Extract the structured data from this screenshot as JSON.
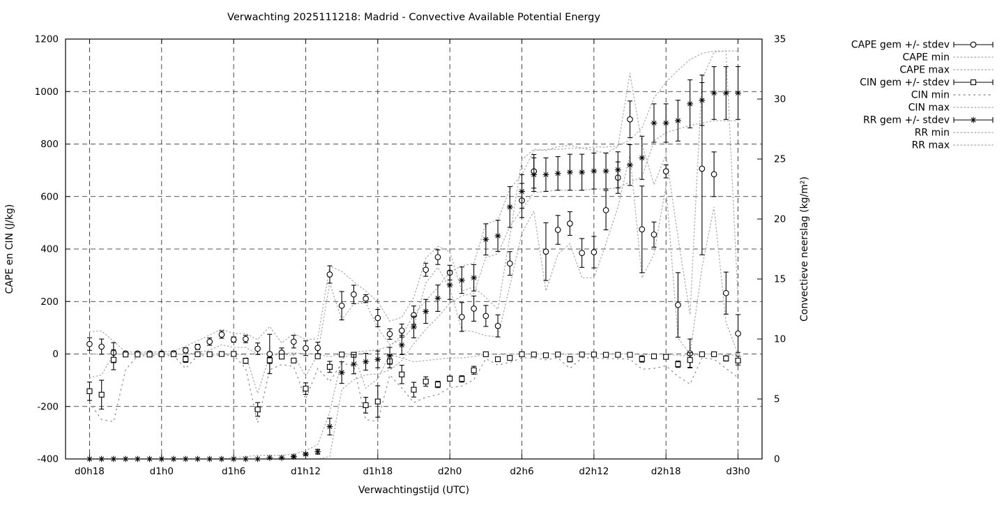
{
  "page": {
    "background": "#ffffff"
  },
  "chart_data": {
    "type": "errorbar-line",
    "title": "Verwachting 2025111218: Madrid - Convective Available Potential Energy",
    "xlabel": "Verwachtingstijd (UTC)",
    "ylabel_left": "CAPE en CIN (J/kg)",
    "ylabel_right": "Convectieve neerslag (kg/m²)",
    "grid": true,
    "legend_position": "outside-top-right",
    "legend": [
      "CAPE gem +/- stdev",
      "CAPE min",
      "CAPE max",
      "CIN gem +/- stdev",
      "CIN min",
      "CIN max",
      "RR gem +/- stdev",
      "RR min",
      "RR max"
    ],
    "colors": {
      "series": "#000000",
      "minmax_dotted": "#b0b0b0",
      "cin_min_dotted": "#8f8f8f",
      "grid": "#1a1a1a",
      "background": "#ffffff"
    },
    "x_domain_hours": [
      -2,
      56
    ],
    "x_ticks": [
      {
        "hour": 0,
        "label": "d0h18"
      },
      {
        "hour": 6,
        "label": "d1h0"
      },
      {
        "hour": 12,
        "label": "d1h6"
      },
      {
        "hour": 18,
        "label": "d1h12"
      },
      {
        "hour": 24,
        "label": "d1h18"
      },
      {
        "hour": 30,
        "label": "d2h0"
      },
      {
        "hour": 36,
        "label": "d2h6"
      },
      {
        "hour": 42,
        "label": "d2h12"
      },
      {
        "hour": 48,
        "label": "d2h18"
      },
      {
        "hour": 54,
        "label": "d3h0"
      }
    ],
    "ylim_left": [
      -400,
      1200
    ],
    "yticks_left": [
      -400,
      -200,
      0,
      200,
      400,
      600,
      800,
      1000,
      1200
    ],
    "ylim_right": [
      0,
      35
    ],
    "yticks_right": [
      0,
      5,
      10,
      15,
      20,
      25,
      30,
      35
    ],
    "hours": [
      0,
      1,
      2,
      3,
      4,
      5,
      6,
      7,
      8,
      9,
      10,
      11,
      12,
      13,
      14,
      15,
      16,
      17,
      18,
      19,
      20,
      21,
      22,
      23,
      24,
      25,
      26,
      27,
      28,
      29,
      30,
      31,
      32,
      33,
      34,
      35,
      36,
      37,
      38,
      39,
      40,
      41,
      42,
      43,
      44,
      45,
      46,
      47,
      48,
      49,
      50,
      51,
      52,
      53,
      54
    ],
    "series": {
      "cape": {
        "name": "CAPE",
        "axis": "left",
        "marker": "circle",
        "mean": [
          38,
          28,
          5,
          2,
          2,
          2,
          2,
          3,
          14,
          27,
          47,
          74,
          55,
          57,
          20,
          0,
          5,
          47,
          22,
          23,
          303,
          184,
          227,
          211,
          137,
          76,
          89,
          148,
          321,
          369,
          310,
          141,
          173,
          145,
          107,
          345,
          585,
          696,
          390,
          473,
          497,
          385,
          388,
          548,
          672,
          894,
          475,
          455,
          696,
          187,
          2,
          706,
          685,
          232,
          78
        ],
        "stdev": [
          24,
          29,
          38,
          3,
          3,
          3,
          3,
          4,
          10,
          10,
          14,
          14,
          10,
          14,
          22,
          75,
          18,
          24,
          28,
          22,
          33,
          54,
          35,
          15,
          33,
          20,
          25,
          35,
          25,
          28,
          28,
          55,
          48,
          40,
          42,
          45,
          65,
          64,
          110,
          55,
          45,
          55,
          60,
          75,
          60,
          70,
          165,
          48,
          25,
          123,
          55,
          328,
          85,
          80,
          72
        ],
        "min": [
          0,
          0,
          0,
          0,
          0,
          0,
          0,
          0,
          0,
          5,
          15,
          35,
          25,
          25,
          0,
          0,
          0,
          5,
          0,
          0,
          270,
          130,
          190,
          195,
          100,
          36,
          55,
          105,
          270,
          330,
          250,
          90,
          85,
          70,
          65,
          260,
          460,
          545,
          240,
          380,
          420,
          290,
          290,
          420,
          560,
          760,
          290,
          380,
          640,
          60,
          0,
          330,
          560,
          120,
          0
        ],
        "max": [
          85,
          88,
          48,
          8,
          7,
          7,
          8,
          10,
          30,
          50,
          72,
          95,
          78,
          78,
          55,
          105,
          42,
          78,
          55,
          58,
          335,
          315,
          275,
          240,
          200,
          125,
          140,
          215,
          365,
          410,
          390,
          240,
          255,
          215,
          170,
          450,
          740,
          780,
          775,
          790,
          795,
          785,
          775,
          765,
          790,
          1070,
          800,
          645,
          760,
          445,
          150,
          1045,
          1150,
          1155,
          200
        ]
      },
      "cin": {
        "name": "CIN",
        "axis": "left",
        "marker": "square",
        "mean": [
          -142,
          -155,
          -22,
          -2,
          -2,
          -2,
          -1,
          -1,
          -20,
          -1,
          -1,
          0,
          0,
          -26,
          -211,
          -24,
          -10,
          -25,
          -132,
          -9,
          -49,
          -2,
          -3,
          -195,
          -181,
          -28,
          -78,
          -136,
          -105,
          -116,
          -94,
          -95,
          -62,
          -1,
          -20,
          -15,
          -1,
          -2,
          -5,
          -2,
          -20,
          -2,
          -2,
          -3,
          -3,
          -3,
          -19,
          -9,
          -11,
          -39,
          -23,
          -1,
          -1,
          -17,
          -25
        ],
        "stdev": [
          35,
          55,
          38,
          2,
          2,
          2,
          2,
          2,
          12,
          2,
          2,
          2,
          2,
          10,
          26,
          12,
          8,
          8,
          22,
          7,
          21,
          5,
          5,
          30,
          60,
          25,
          35,
          28,
          18,
          12,
          10,
          12,
          15,
          4,
          7,
          5,
          3,
          3,
          4,
          3,
          10,
          3,
          3,
          3,
          3,
          3,
          12,
          9,
          7,
          12,
          28,
          3,
          4,
          10,
          17
        ],
        "min": [
          -185,
          -250,
          -258,
          -60,
          -6,
          -6,
          -5,
          -6,
          -55,
          -6,
          -5,
          -4,
          -5,
          -55,
          -262,
          -60,
          -40,
          -48,
          -172,
          -55,
          -105,
          -35,
          -45,
          -250,
          -258,
          -80,
          -130,
          -185,
          -165,
          -155,
          -128,
          -122,
          -98,
          -18,
          -42,
          -32,
          -15,
          -15,
          -22,
          -15,
          -55,
          -15,
          -15,
          -18,
          -18,
          -20,
          -58,
          -55,
          -45,
          -85,
          -115,
          -15,
          -20,
          -55,
          -90
        ],
        "max": [
          -90,
          -80,
          -1,
          0,
          0,
          0,
          0,
          0,
          -2,
          0,
          0,
          0,
          0,
          -4,
          -150,
          -5,
          -1,
          -5,
          -85,
          -1,
          -10,
          0,
          0,
          -130,
          -95,
          -3,
          -15,
          -30,
          -25,
          -20,
          -15,
          -15,
          -10,
          0,
          -2,
          -1,
          0,
          0,
          0,
          0,
          -2,
          0,
          0,
          0,
          0,
          0,
          -3,
          -1,
          -1,
          -5,
          -8,
          0,
          0,
          -3,
          -5
        ]
      },
      "rr": {
        "name": "RR",
        "axis": "right",
        "marker": "asterisk",
        "mean": [
          0,
          0,
          0,
          0,
          0,
          0,
          0,
          0,
          0,
          0,
          0,
          0,
          0,
          0,
          0,
          0.1,
          0.1,
          0.2,
          0.4,
          0.6,
          2.7,
          7.2,
          7.9,
          8.1,
          8.3,
          8.6,
          9.5,
          11.0,
          12.3,
          13.4,
          14.5,
          14.9,
          15.1,
          18.3,
          18.6,
          21.0,
          22.3,
          23.7,
          23.7,
          23.8,
          23.9,
          23.9,
          24.0,
          24.0,
          24.1,
          24.5,
          25.1,
          28.0,
          28.0,
          28.2,
          29.6,
          29.9,
          30.5,
          30.5,
          30.5
        ],
        "stdev": [
          0,
          0,
          0,
          0,
          0,
          0,
          0,
          0,
          0,
          0,
          0,
          0,
          0,
          0,
          0.05,
          0.05,
          0.05,
          0.1,
          0.1,
          0.2,
          0.7,
          0.9,
          0.8,
          0.7,
          0.7,
          0.7,
          0.8,
          0.9,
          1.0,
          1.1,
          1.2,
          1.1,
          1.1,
          1.3,
          1.3,
          1.7,
          1.4,
          1.4,
          1.4,
          1.4,
          1.5,
          1.5,
          1.5,
          1.5,
          1.5,
          1.7,
          1.8,
          1.6,
          1.6,
          1.7,
          2.0,
          2.1,
          2.2,
          2.2,
          2.2
        ],
        "min": [
          0,
          0,
          0,
          0,
          0,
          0,
          0,
          0,
          0,
          0,
          0,
          0,
          0,
          0,
          0,
          0,
          0,
          0,
          0,
          0,
          0.2,
          5.8,
          6.6,
          7.0,
          7.1,
          7.4,
          8.2,
          9.6,
          10.8,
          11.8,
          13.0,
          13.6,
          13.8,
          16.8,
          17.1,
          19.4,
          20.8,
          22.2,
          22.3,
          22.4,
          22.4,
          22.4,
          22.5,
          22.5,
          22.6,
          23.1,
          23.5,
          26.5,
          27.2,
          27.5,
          27.8,
          28.0,
          28.2,
          28.2,
          28.2
        ],
        "max": [
          0,
          0,
          0,
          0,
          0,
          0,
          0,
          0,
          0,
          0,
          0,
          0,
          0.1,
          0.2,
          0.3,
          0.3,
          0.3,
          0.4,
          0.7,
          1.2,
          3.9,
          8.3,
          8.9,
          9.0,
          9.1,
          9.4,
          10.3,
          12.0,
          13.2,
          14.3,
          15.6,
          16.1,
          16.3,
          19.6,
          19.9,
          22.5,
          23.7,
          25.7,
          25.8,
          25.8,
          25.9,
          25.9,
          26.0,
          26.0,
          26.1,
          26.6,
          27.6,
          30.1,
          31.4,
          32.4,
          33.3,
          33.8,
          34.0,
          34.0,
          34.0
        ]
      }
    }
  }
}
